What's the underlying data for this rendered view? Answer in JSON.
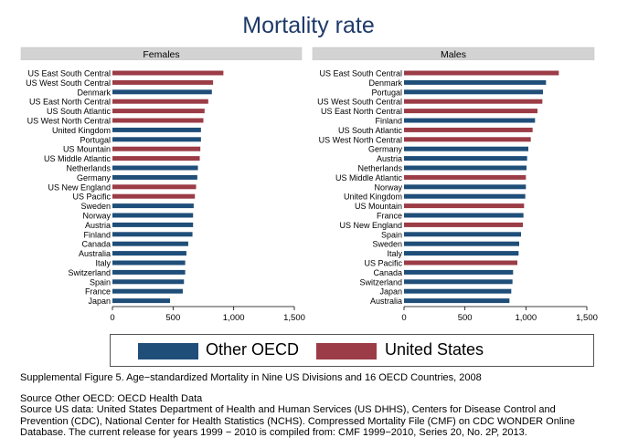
{
  "title": "Mortality rate",
  "colors": {
    "oecd": "#1f4e79",
    "us": "#9b3c46",
    "panel_header": "#d3d3d3"
  },
  "chart_data": [
    {
      "type": "bar",
      "orientation": "horizontal",
      "panel_title": "Females",
      "xlim": [
        0,
        1500
      ],
      "xticks": [
        0,
        500,
        1000,
        1500
      ],
      "xtick_labels": [
        "0",
        "500",
        "1,000",
        "1,500"
      ],
      "categories": [
        "US East South Central",
        "US West South Central",
        "Denmark",
        "US East North Central",
        "US South Atlantic",
        "US West North Central",
        "United Kingdom",
        "Portugal",
        "US Mountain",
        "US Middle Atlantic",
        "Netherlands",
        "Germany",
        "US New England",
        "US Pacific",
        "Sweden",
        "Norway",
        "Austria",
        "Finland",
        "Canada",
        "Australia",
        "Italy",
        "Switzerland",
        "Spain",
        "France",
        "Japan"
      ],
      "values": [
        915,
        830,
        820,
        790,
        760,
        750,
        730,
        730,
        725,
        720,
        705,
        700,
        690,
        680,
        670,
        665,
        665,
        660,
        625,
        610,
        600,
        600,
        590,
        580,
        475
      ],
      "groups": [
        "us",
        "us",
        "oecd",
        "us",
        "us",
        "us",
        "oecd",
        "oecd",
        "us",
        "us",
        "oecd",
        "oecd",
        "us",
        "us",
        "oecd",
        "oecd",
        "oecd",
        "oecd",
        "oecd",
        "oecd",
        "oecd",
        "oecd",
        "oecd",
        "oecd",
        "oecd"
      ]
    },
    {
      "type": "bar",
      "orientation": "horizontal",
      "panel_title": "Males",
      "xlim": [
        0,
        1500
      ],
      "xticks": [
        0,
        500,
        1000,
        1500
      ],
      "xtick_labels": [
        "0",
        "500",
        "1,000",
        "1,500"
      ],
      "categories": [
        "US East South Central",
        "Denmark",
        "Portugal",
        "US West South Central",
        "US East North Central",
        "Finland",
        "US South Atlantic",
        "US West North Central",
        "Germany",
        "Austria",
        "Netherlands",
        "US Middle Atlantic",
        "Norway",
        "United Kingdom",
        "US Mountain",
        "France",
        "US New England",
        "Spain",
        "Sweden",
        "Italy",
        "US Pacific",
        "Canada",
        "Switzerland",
        "Japan",
        "Australia"
      ],
      "values": [
        1270,
        1165,
        1140,
        1135,
        1095,
        1075,
        1055,
        1040,
        1020,
        1010,
        1005,
        1000,
        1000,
        995,
        985,
        980,
        975,
        960,
        945,
        940,
        930,
        895,
        890,
        880,
        865
      ],
      "groups": [
        "us",
        "oecd",
        "oecd",
        "us",
        "us",
        "oecd",
        "us",
        "us",
        "oecd",
        "oecd",
        "oecd",
        "us",
        "oecd",
        "oecd",
        "us",
        "oecd",
        "us",
        "oecd",
        "oecd",
        "oecd",
        "us",
        "oecd",
        "oecd",
        "oecd",
        "oecd"
      ]
    }
  ],
  "legend": {
    "oecd_label": "Other OECD",
    "us_label": "United States"
  },
  "notes": {
    "caption": "Supplemental Figure 5. Age−standardized Mortality in Nine US Divisions and 16 OECD Countries, 2008",
    "source_oecd": "Source Other OECD: OECD Health Data",
    "source_us": "Source US data: United States Department of Health and Human Services (US DHHS), Centers for Disease Control and Prevention (CDC), National Center for Health Statistics (NCHS). Compressed Mortality File (CMF) on CDC WONDER Online Database. The current release for years 1999 − 2010 is compiled from: CMF 1999−2010, Series 20, No. 2P, 2013."
  }
}
